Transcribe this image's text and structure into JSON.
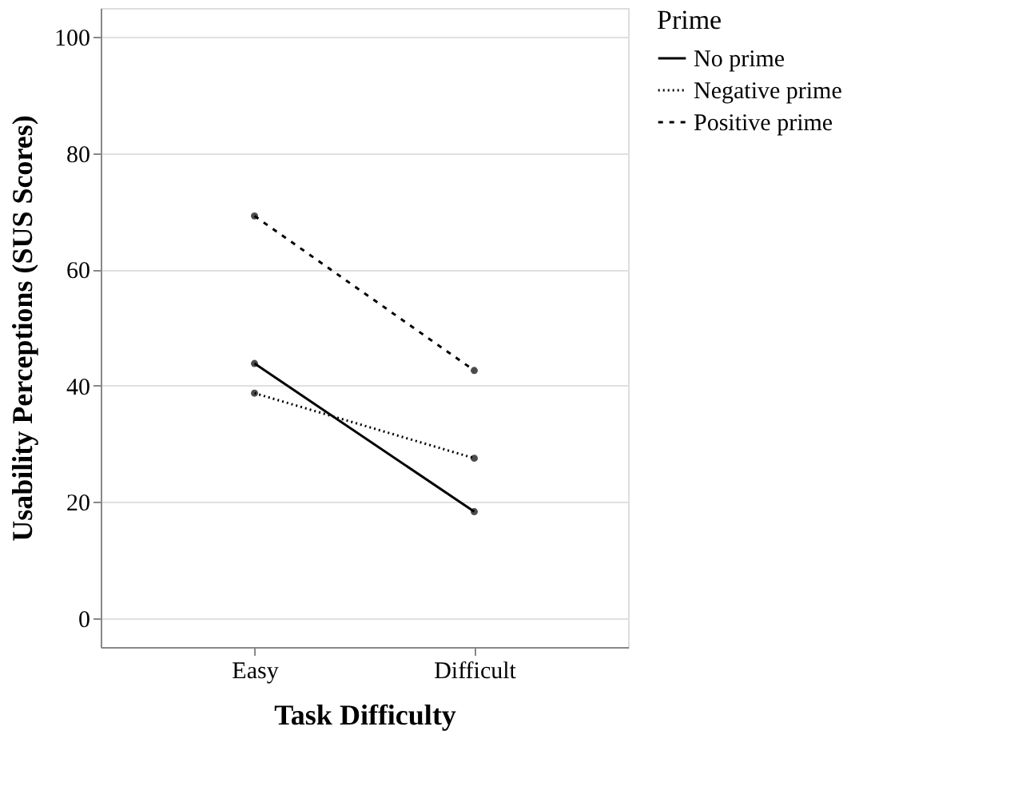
{
  "chart_data": {
    "type": "line",
    "xlabel": "Task Difficulty",
    "ylabel": "Usability Perceptions (SUS Scores)",
    "legend_title": "Prime",
    "categories": [
      "Easy",
      "Difficult"
    ],
    "series": [
      {
        "name": "No prime",
        "color": "#000000",
        "line_style": "solid",
        "values": [
          43.8,
          18.3
        ]
      },
      {
        "name": "Negative prime",
        "color": "#000000",
        "line_style": "dotted",
        "values": [
          38.7,
          27.5
        ]
      },
      {
        "name": "Positive prime",
        "color": "#000000",
        "line_style": "dashed",
        "values": [
          69.2,
          42.6
        ]
      }
    ],
    "ylim": [
      -5,
      105
    ],
    "yticks": [
      0,
      20,
      40,
      60,
      80,
      100
    ],
    "grid": "y",
    "legend": "top right",
    "marker": "circle"
  }
}
